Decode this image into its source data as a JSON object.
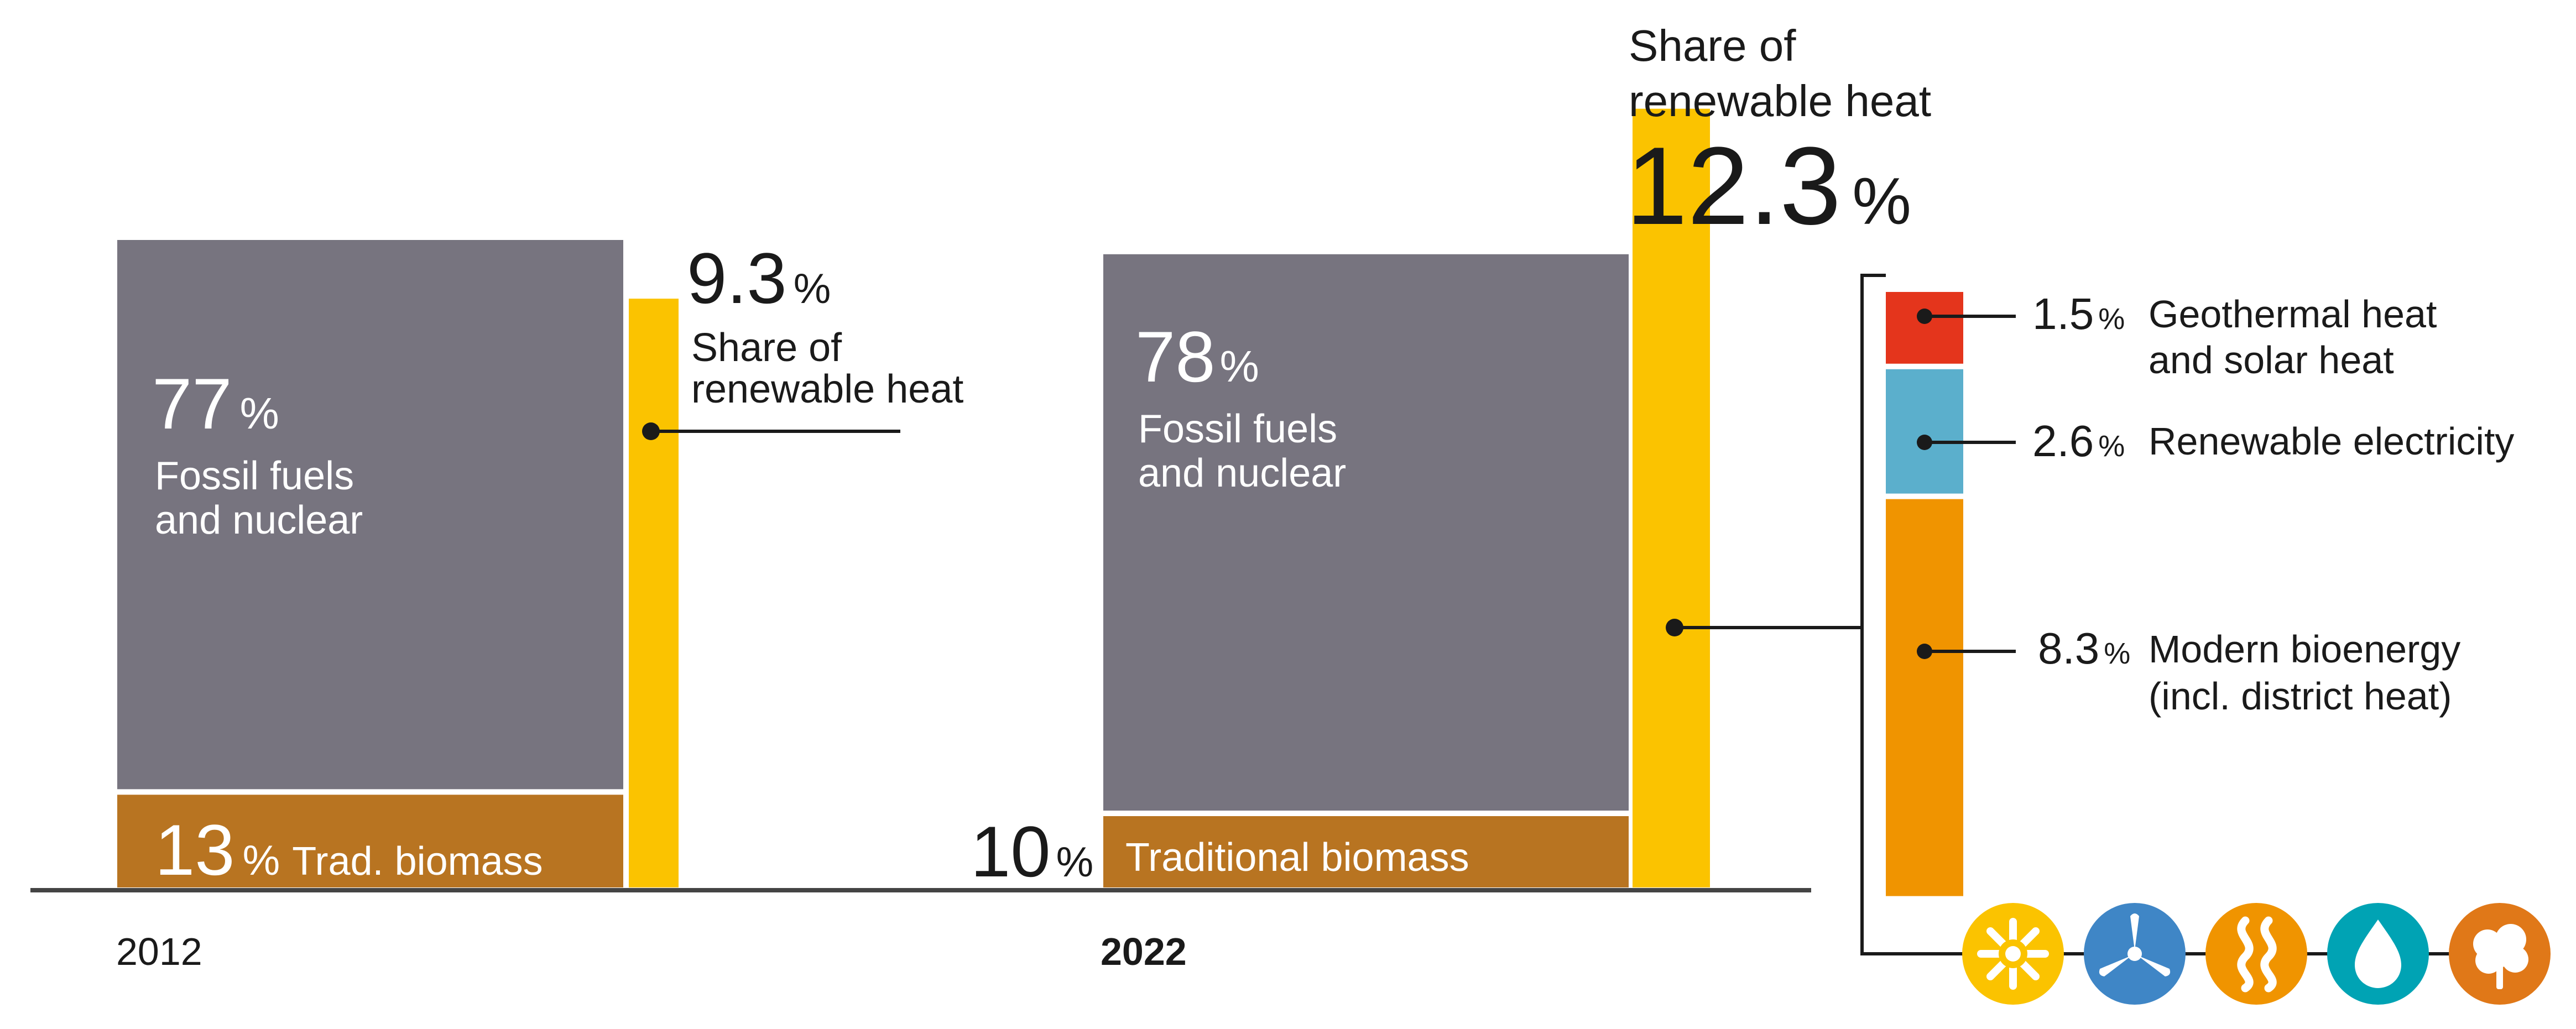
{
  "chart_data": {
    "type": "bar",
    "title": "",
    "subtitle": "",
    "xlabel": "",
    "ylabel": "",
    "categories": [
      "2012",
      "2022"
    ],
    "series": [
      {
        "key": "fossil",
        "name": "Fossil fuels and nuclear",
        "values": [
          77,
          78
        ],
        "labels": [
          "77",
          "78"
        ],
        "color": "#77747f"
      },
      {
        "key": "trad",
        "name": "Traditional biomass",
        "values": [
          13,
          10
        ],
        "labels": [
          "13",
          "10"
        ],
        "color": "#b87421"
      },
      {
        "key": "renew",
        "name": "Share of renewable heat",
        "values": [
          9.3,
          12.3
        ],
        "labels": [
          "9.3",
          "12.3"
        ],
        "color": "#fbc300"
      }
    ],
    "percent_sign": "%",
    "labels_2012": {
      "fossil_line1": "Fossil fuels",
      "fossil_line2": "and nuclear",
      "trad": "Trad. biomass",
      "renew_line1": "Share of",
      "renew_line2": "renewable heat"
    },
    "labels_2022": {
      "fossil_line1": "Fossil fuels",
      "fossil_line2": "and nuclear",
      "trad": "Traditional biomass",
      "renew_line1": "Share of",
      "renew_line2": "renewable heat"
    },
    "breakdown_2022": [
      {
        "key": "geo",
        "value": 1.5,
        "label": "1.5",
        "line1": "Geothermal heat",
        "line2": "and solar heat",
        "color": "#e4351c"
      },
      {
        "key": "elec",
        "value": 2.6,
        "label": "2.6",
        "line1": "Renewable electricity",
        "line2": "",
        "color": "#5bafcc"
      },
      {
        "key": "bio",
        "value": 8.3,
        "label": "8.3",
        "line1": "Modern bioenergy",
        "line2": "(incl. district heat)",
        "color": "#f09400"
      }
    ],
    "icons": [
      {
        "name": "solar-icon",
        "color": "#fbc300"
      },
      {
        "name": "wind-turbine-icon",
        "color": "#3f86c6"
      },
      {
        "name": "heat-waves-icon",
        "color": "#f09400"
      },
      {
        "name": "water-drop-icon",
        "color": "#00a3b4"
      },
      {
        "name": "biomass-tree-icon",
        "color": "#e07818"
      }
    ]
  }
}
